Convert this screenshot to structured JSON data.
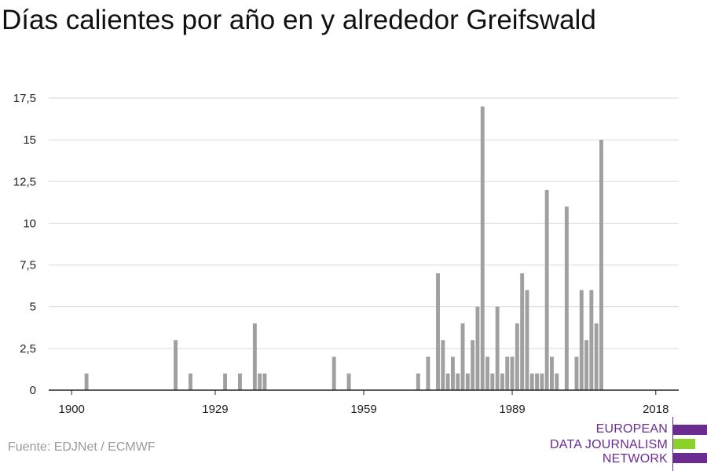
{
  "title": "Días calientes por año en y alrededor Greifswald",
  "source": "Fuente: EDJNet / ECMWF",
  "logo": {
    "lines": [
      "EUROPEAN",
      "DATA JOURNALISM",
      "NETWORK"
    ],
    "colors": {
      "purple": "#6b2c91",
      "green": "#8bd12a"
    }
  },
  "colors": {
    "bar": "#a0a0a0",
    "grid": "#d9d9d9",
    "axis": "#222222"
  },
  "chart_data": {
    "type": "bar",
    "title": "Días calientes por año en y alrededor Greifswald",
    "xlabel": "",
    "ylabel": "",
    "xlim": [
      1896,
      2022
    ],
    "ylim": [
      0,
      17.5
    ],
    "xticks": [
      1900,
      1929,
      1959,
      1989,
      2018
    ],
    "xtick_labels": [
      "1900",
      "1929",
      "1959",
      "1989",
      "2018"
    ],
    "yticks": [
      0,
      2.5,
      5,
      7.5,
      10,
      12.5,
      15,
      17.5
    ],
    "ytick_labels": [
      "0",
      "2,5",
      "5",
      "7,5",
      "10",
      "12,5",
      "15",
      "17,5"
    ],
    "grid": true,
    "x": [
      1903,
      1921,
      1924,
      1931,
      1934,
      1937,
      1938,
      1939,
      1953,
      1956,
      1970,
      1972,
      1974,
      1975,
      1976,
      1977,
      1978,
      1979,
      1980,
      1981,
      1982,
      1983,
      1984,
      1985,
      1986,
      1987,
      1988,
      1989,
      1990,
      1991,
      1992,
      1993,
      1994,
      1995,
      1996,
      1997,
      1998,
      2000,
      2002,
      2003,
      2004,
      2005,
      2006,
      2007,
      2009,
      2011
    ],
    "values": [
      1,
      3,
      1,
      1,
      1,
      4,
      1,
      1,
      2,
      1,
      1,
      2,
      7,
      3,
      1,
      2,
      1,
      4,
      1,
      3,
      5,
      17,
      2,
      1,
      5,
      1,
      2,
      2,
      4,
      7,
      6,
      1,
      1,
      1,
      12,
      2,
      1,
      11,
      2,
      6,
      3,
      6,
      4,
      15,
      0,
      0
    ]
  }
}
